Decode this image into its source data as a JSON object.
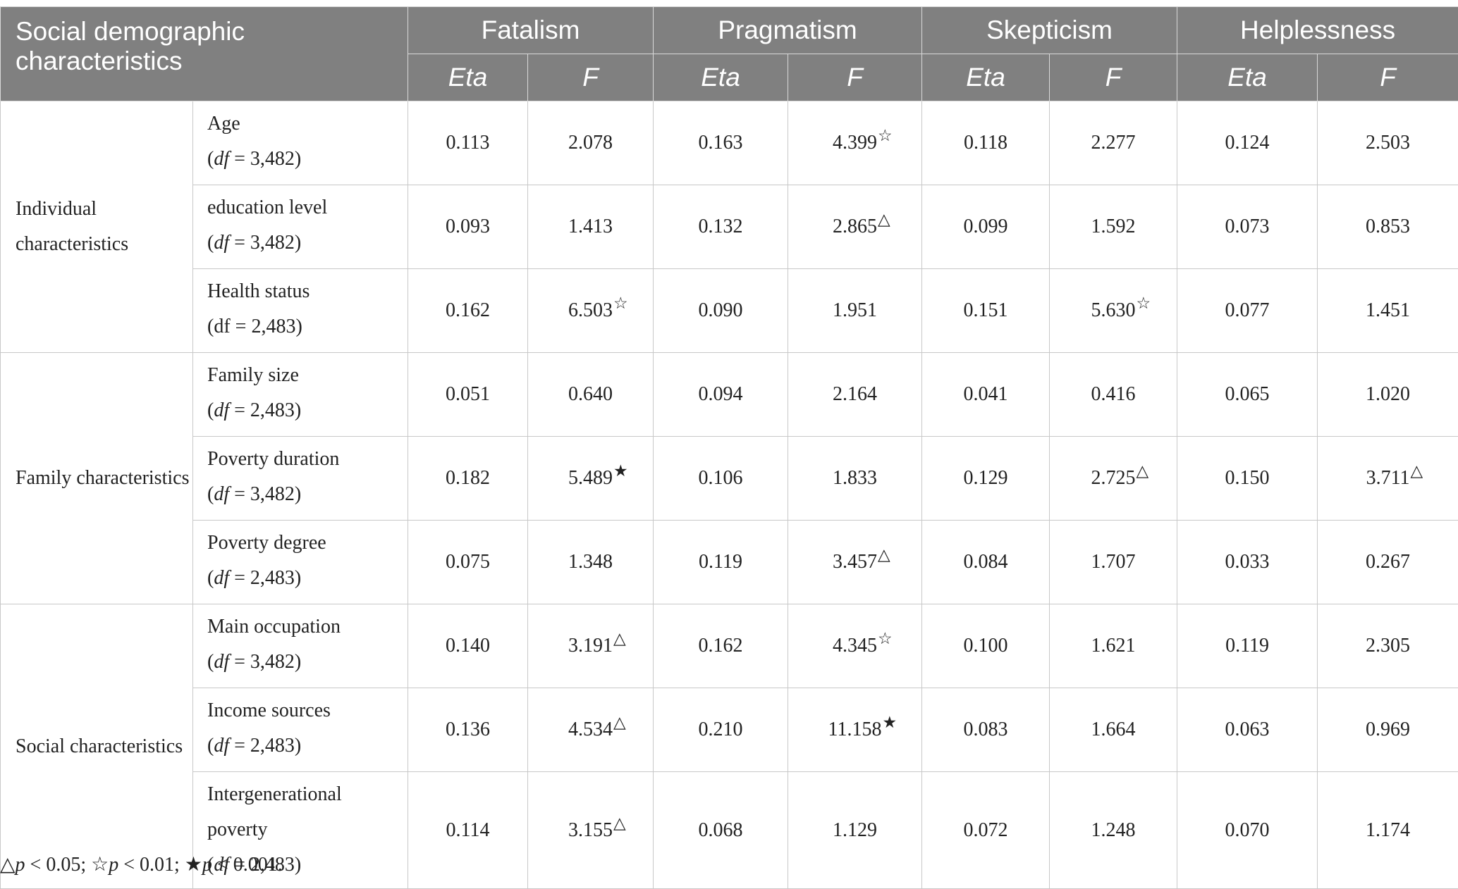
{
  "header": {
    "corner": "Social demographic characteristics",
    "groups": [
      "Fatalism",
      "Pragmatism",
      "Skepticism",
      "Helplessness"
    ],
    "eta": "Eta",
    "f": "F"
  },
  "categories": [
    "Individual characteristics",
    "Family characteristics",
    "Social characteristics"
  ],
  "rows": [
    {
      "name": "Age",
      "df_label": "df",
      "df_value": " = 3,482",
      "v": [
        "0.113",
        "2.078",
        "0.163",
        "4.399",
        "0.118",
        "2.277",
        "0.124",
        "2.503"
      ],
      "m": [
        "",
        "",
        "",
        "☆",
        "",
        "",
        "",
        ""
      ]
    },
    {
      "name": "education level",
      "df_label": "df",
      "df_value": " = 3,482",
      "v": [
        "0.093",
        "1.413",
        "0.132",
        "2.865",
        "0.099",
        "1.592",
        "0.073",
        "0.853"
      ],
      "m": [
        "",
        "",
        "",
        "△",
        "",
        "",
        "",
        ""
      ]
    },
    {
      "name": "Health status",
      "df_label": "df",
      "df_value": " = 2,483",
      "v": [
        "0.162",
        "6.503",
        "0.090",
        "1.951",
        "0.151",
        "5.630",
        "0.077",
        "1.451"
      ],
      "m": [
        "",
        "☆",
        "",
        "",
        "",
        "☆",
        "",
        ""
      ]
    },
    {
      "name": "Family size",
      "df_label": "df",
      "df_value": " = 2,483",
      "v": [
        "0.051",
        "0.640",
        "0.094",
        "2.164",
        "0.041",
        "0.416",
        "0.065",
        "1.020"
      ],
      "m": [
        "",
        "",
        "",
        "",
        "",
        "",
        "",
        ""
      ]
    },
    {
      "name": "Poverty duration",
      "df_label": "df",
      "df_value": " = 3,482",
      "v": [
        "0.182",
        "5.489",
        "0.106",
        "1.833",
        "0.129",
        "2.725",
        "0.150",
        "3.711"
      ],
      "m": [
        "",
        "★",
        "",
        "",
        "",
        "△",
        "",
        "△"
      ]
    },
    {
      "name": "Poverty degree",
      "df_label": "df",
      "df_value": " = 2,483",
      "v": [
        "0.075",
        "1.348",
        "0.119",
        "3.457",
        "0.084",
        "1.707",
        "0.033",
        "0.267"
      ],
      "m": [
        "",
        "",
        "",
        "△",
        "",
        "",
        "",
        ""
      ]
    },
    {
      "name": "Main occupation",
      "df_label": "df",
      "df_value": " = 3,482",
      "v": [
        "0.140",
        "3.191",
        "0.162",
        "4.345",
        "0.100",
        "1.621",
        "0.119",
        "2.305"
      ],
      "m": [
        "",
        "△",
        "",
        "☆",
        "",
        "",
        "",
        ""
      ]
    },
    {
      "name": "Income sources",
      "df_label": "df",
      "df_value": " = 2,483",
      "v": [
        "0.136",
        "4.534",
        "0.210",
        "11.158",
        "0.083",
        "1.664",
        "0.063",
        "0.969"
      ],
      "m": [
        "",
        "△",
        "",
        "★",
        "",
        "",
        "",
        ""
      ]
    },
    {
      "name1": "Intergenerational",
      "name2": "poverty",
      "df_label": "df",
      "df_value": " = 2,483",
      "v": [
        "0.114",
        "3.155",
        "0.068",
        "1.129",
        "0.072",
        "1.248",
        "0.070",
        "1.174"
      ],
      "m": [
        "",
        "△",
        "",
        "",
        "",
        "",
        "",
        ""
      ]
    }
  ],
  "footnote": {
    "s1": "△",
    "p1": "p",
    "t1": " < 0.05; ",
    "s2": "☆",
    "p2": "p",
    "t2": " < 0.01; ",
    "s3": "★",
    "p3": "p",
    "t3": " < 0.001."
  }
}
